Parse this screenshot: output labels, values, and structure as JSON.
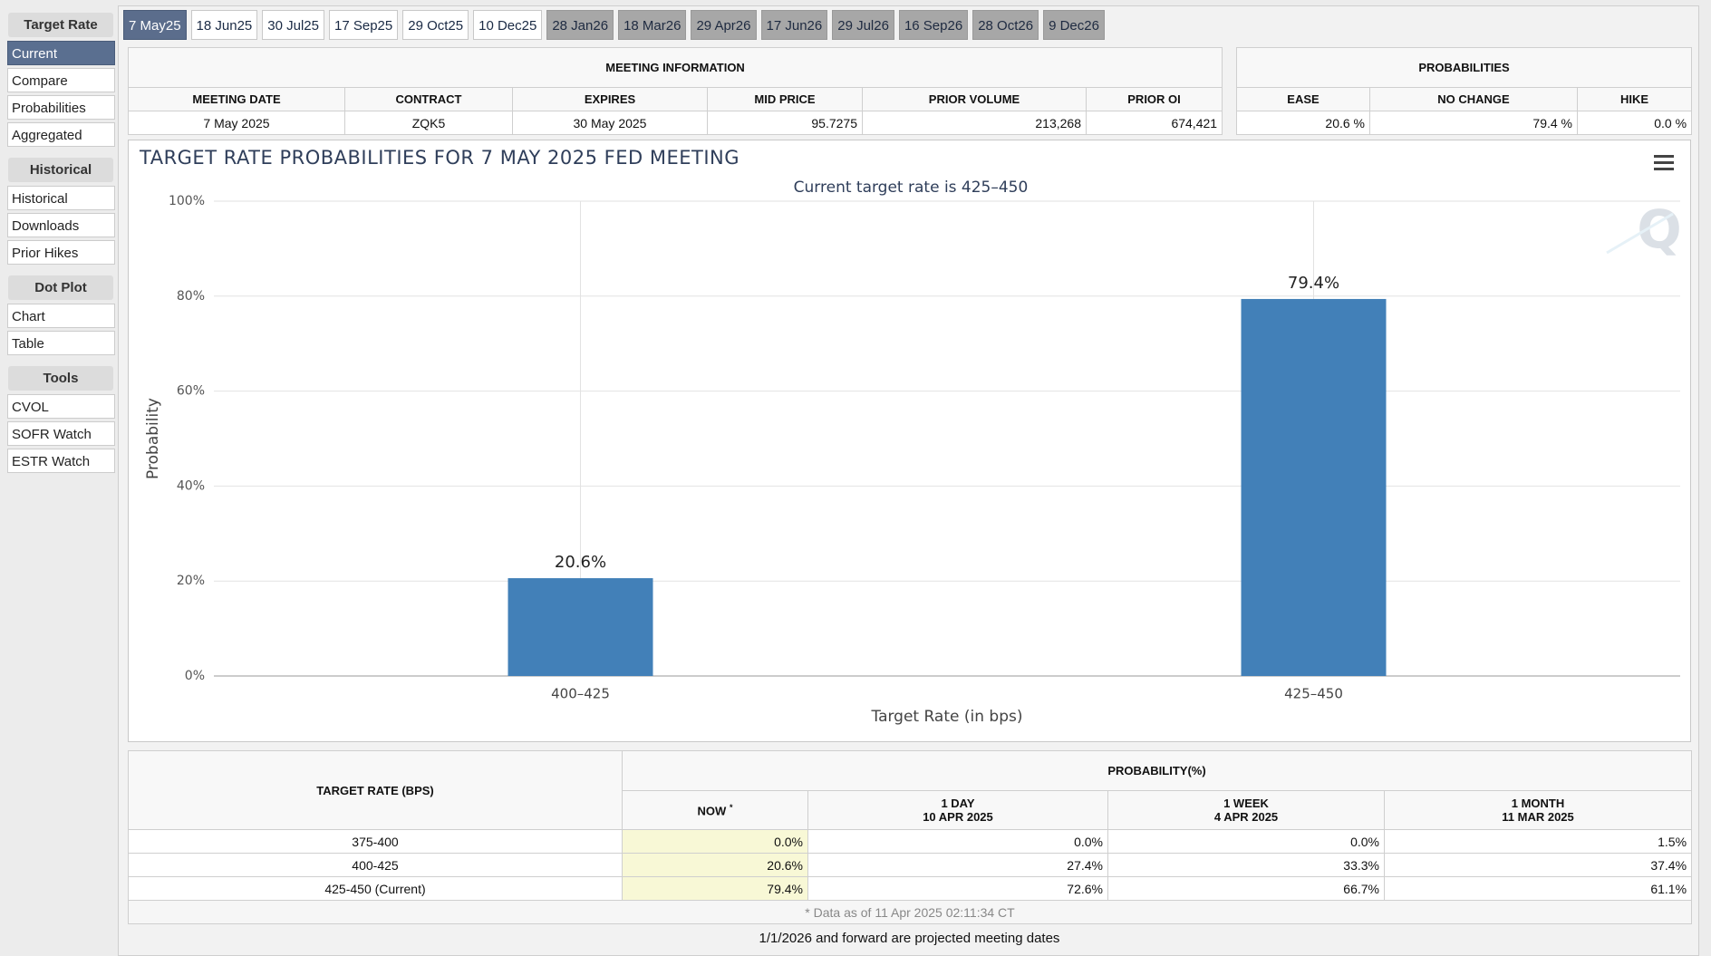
{
  "sidebar": [
    {
      "title": "Target Rate",
      "items": [
        "Current",
        "Compare",
        "Probabilities",
        "Aggregated"
      ]
    },
    {
      "title": "Historical",
      "items": [
        "Historical",
        "Downloads",
        "Prior Hikes"
      ]
    },
    {
      "title": "Dot Plot",
      "items": [
        "Chart",
        "Table"
      ]
    },
    {
      "title": "Tools",
      "items": [
        "CVOL",
        "SOFR Watch",
        "ESTR Watch"
      ]
    }
  ],
  "tabs": {
    "meetings": [
      "7 May25",
      "18 Jun25",
      "30 Jul25",
      "17 Sep25",
      "29 Oct25",
      "10 Dec25"
    ],
    "projected_meetings": [
      "28 Jan26",
      "18 Mar26",
      "29 Apr26",
      "17 Jun26",
      "29 Jul26",
      "16 Sep26",
      "28 Oct26",
      "9 Dec26"
    ]
  },
  "meeting_information": {
    "title": "MEETING INFORMATION",
    "headers": [
      "MEETING DATE",
      "CONTRACT",
      "EXPIRES",
      "MID PRICE",
      "PRIOR VOLUME",
      "PRIOR OI"
    ],
    "row": [
      "7 May 2025",
      "ZQK5",
      "30 May 2025",
      "95.7275",
      "213,268",
      "674,421"
    ]
  },
  "probabilities": {
    "title": "PROBABILITIES",
    "headers": [
      "EASE",
      "NO CHANGE",
      "HIKE"
    ],
    "row": [
      "20.6 %",
      "79.4 %",
      "0.0 %"
    ]
  },
  "chart_data": {
    "type": "bar",
    "title": "TARGET RATE PROBABILITIES FOR 7 MAY 2025 FED MEETING",
    "subtitle": "Current target rate is 425–450",
    "x_label": "Target Rate (in bps)",
    "y_label": "Probability",
    "categories": [
      "400–425",
      "425–450"
    ],
    "values": [
      20.6,
      79.4
    ],
    "value_labels": [
      "20.6%",
      "79.4%"
    ],
    "color": "#4280b8",
    "ylim": [
      0,
      100
    ],
    "yticks": [
      {
        "value": 0,
        "label": "0%"
      },
      {
        "value": 20,
        "label": "20%"
      },
      {
        "value": 40,
        "label": "40%"
      },
      {
        "value": 60,
        "label": "60%"
      },
      {
        "value": 80,
        "label": "80%"
      },
      {
        "value": 100,
        "label": "100%"
      }
    ],
    "grid": true
  },
  "probability_table": {
    "rate_header": "TARGET RATE (BPS)",
    "title": "PROBABILITY(%)",
    "columns": [
      {
        "label": "NOW",
        "note": "*"
      },
      {
        "label": "1 DAY",
        "date": "10 APR 2025"
      },
      {
        "label": "1 WEEK",
        "date": "4 APR 2025"
      },
      {
        "label": "1 MONTH",
        "date": "11 MAR 2025"
      }
    ],
    "rows": [
      [
        "375-400",
        "0.0%",
        "0.0%",
        "0.0%",
        "1.5%"
      ],
      [
        "400-425",
        "20.6%",
        "27.4%",
        "33.3%",
        "37.4%"
      ],
      [
        "425-450 (Current)",
        "79.4%",
        "72.6%",
        "66.7%",
        "61.1%"
      ]
    ],
    "footnote": "* Data as of 11 Apr 2025 02:11:34 CT"
  },
  "footer": "1/1/2026 and forward are projected meeting dates"
}
